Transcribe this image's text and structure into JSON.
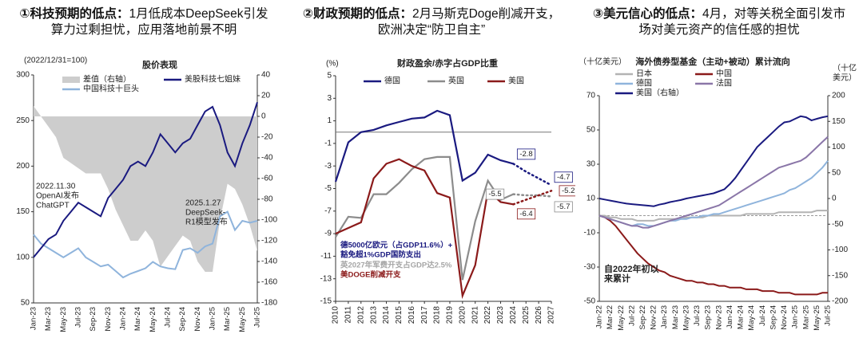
{
  "chart_data": [
    {
      "type": "line",
      "heading": {
        "lead": "①科技预期的低点：",
        "text": "1月低成本DeepSeek引发算力过剩担忧，应用落地前景不明"
      },
      "title": "股价表现",
      "note": "(2022/12/31=100)",
      "categories": [
        "Jan-23",
        null,
        "Mar-23",
        null,
        "May-23",
        null,
        "Jul-23",
        null,
        "Sep-23",
        null,
        "Nov-23",
        null,
        "Jan-24",
        null,
        "Mar-24",
        null,
        "May-24",
        null,
        "Jul-24",
        null,
        "Sep-24",
        null,
        "Nov-24",
        null,
        "Jan-25",
        null,
        "Mar-25",
        null,
        "May-25",
        null,
        "Jul-25"
      ],
      "series": [
        {
          "name": "差值（右轴）",
          "type": "area",
          "axis": "y2",
          "color": "#cdcdcd",
          "values": [
            10,
            0,
            -10,
            -20,
            -40,
            -45,
            -50,
            -55,
            -55,
            -55,
            -70,
            -90,
            -105,
            -120,
            -120,
            -110,
            -120,
            -145,
            -135,
            -125,
            -115,
            -120,
            -140,
            -150,
            -150,
            -100,
            -65,
            -70,
            -85,
            -105,
            -130
          ]
        },
        {
          "name": "中国科技十巨头",
          "type": "line",
          "color": "#8fb4dc",
          "values": [
            125,
            115,
            110,
            105,
            100,
            105,
            110,
            100,
            95,
            90,
            92,
            85,
            78,
            82,
            85,
            88,
            95,
            90,
            88,
            87,
            108,
            110,
            105,
            112,
            115,
            145,
            150,
            130,
            140,
            138,
            140
          ]
        },
        {
          "name": "美股科技七姐妹",
          "type": "line",
          "color": "#1a1a80",
          "values": [
            100,
            110,
            120,
            125,
            140,
            150,
            160,
            155,
            150,
            145,
            165,
            175,
            185,
            200,
            205,
            200,
            215,
            235,
            225,
            215,
            225,
            230,
            245,
            260,
            265,
            245,
            215,
            200,
            225,
            245,
            270
          ]
        }
      ],
      "ylim": [
        50,
        300
      ],
      "yticks": [
        50,
        100,
        150,
        200,
        250,
        300
      ],
      "y2lim": [
        -180,
        40
      ],
      "y2ticks": [
        -180,
        -160,
        -140,
        -120,
        -100,
        -80,
        -60,
        -40,
        -20,
        0,
        20,
        40
      ],
      "annotations": [
        [
          "2022.11.30",
          "OpenAI发布",
          "ChatGPT"
        ],
        [
          "2025.1.27",
          "DeepSeek-",
          "R1模型发布"
        ]
      ]
    },
    {
      "type": "line",
      "heading": {
        "lead": "②财政预期的低点：",
        "text": "2月马斯克Doge削减开支，欧洲决定“防卫自主”"
      },
      "title": "财政盈余/赤字占GDP比重",
      "ylabel": "(%)",
      "x": [
        2010,
        2011,
        2012,
        2013,
        2014,
        2015,
        2016,
        2017,
        2018,
        2019,
        2020,
        2021,
        2022,
        2023,
        2024,
        2025,
        2026,
        2027
      ],
      "xlim": [
        2010,
        2027
      ],
      "xticks": [
        2010,
        2011,
        2012,
        2013,
        2014,
        2015,
        2016,
        2017,
        2018,
        2019,
        2020,
        2021,
        2022,
        2023,
        2024,
        2025,
        2026,
        2027
      ],
      "projection_from": 2024,
      "series": [
        {
          "name": "德国",
          "color": "#1a1a80",
          "values": [
            -4.4,
            -0.9,
            0,
            0.2,
            0.6,
            0.9,
            1.2,
            1.3,
            1.9,
            1.5,
            -4.3,
            -3.6,
            -2.0,
            -2.5,
            -2.8,
            -3.5,
            -4.1,
            -4.7
          ]
        },
        {
          "name": "英国",
          "color": "#8c8c8c",
          "values": [
            -9.3,
            -7.5,
            -7.6,
            -5.5,
            -5.5,
            -4.5,
            -3.3,
            -2.4,
            -2.2,
            -2.2,
            -13.1,
            -7.9,
            -4.3,
            -6.0,
            -5.5,
            -5.6,
            -5.6,
            -5.7
          ]
        },
        {
          "name": "美国",
          "color": "#8b1a1a",
          "values": [
            -9.0,
            -8.5,
            -8.0,
            -4.1,
            -2.8,
            -2.4,
            -3.0,
            -3.4,
            -5.4,
            -5.8,
            -14.5,
            -11.8,
            -5.2,
            -6.2,
            -6.4,
            -6.0,
            -5.6,
            -5.2
          ]
        }
      ],
      "ylim": [
        -15,
        5
      ],
      "yticks": [
        5,
        3,
        1,
        -1,
        -3,
        -5,
        -7,
        -9,
        -11,
        -13,
        -15
      ],
      "annotations": [
        {
          "lines": [
            "德5000亿欧元（占GDP11.6%）+",
            "豁免超1%GDP国防支出"
          ],
          "color": "#1a1a80"
        },
        {
          "lines": [
            "英2027年军费开支占GDP达2.5%"
          ],
          "color": "#a6a6a6"
        },
        {
          "lines": [
            "美DOGE削减开支"
          ],
          "color": "#8b1a1a"
        }
      ]
    },
    {
      "type": "line",
      "heading": {
        "lead": "③美元信心的低点：",
        "text": "4月，对等关税全面引发市场对美元资产的信任感的担忧"
      },
      "title": "海外债券型基金（主动+被动）累计流向",
      "ylabel": "（十亿美元）",
      "y2label": [
        "（十亿",
        "美元）"
      ],
      "categories": [
        "Jan-22",
        null,
        "Mar-22",
        null,
        "May-22",
        null,
        "Jul-22",
        null,
        "Sep-22",
        null,
        "Nov-22",
        null,
        "Jan-23",
        null,
        "Mar-23",
        null,
        "May-23",
        null,
        "Jul-23",
        null,
        "Sep-23",
        null,
        "Nov-23",
        null,
        "Jan-24",
        null,
        "Mar-24",
        null,
        "May-24",
        null,
        "Jul-24",
        null,
        "Sep-24",
        null,
        "Nov-24",
        null,
        "Jan-25",
        null,
        "Mar-25",
        null,
        "May-25",
        null,
        "Jul-25"
      ],
      "series": [
        {
          "name": "日本",
          "color": "#b3b3b3",
          "values": [
            0,
            0,
            -1,
            -1,
            -2,
            -2,
            -2,
            -3,
            -3,
            -3,
            -3,
            -2,
            -2,
            -2,
            -2,
            -2,
            -1,
            -1,
            -1,
            -1,
            0,
            0,
            0,
            0,
            0,
            0,
            0,
            1,
            1,
            1,
            1,
            1,
            1,
            2,
            2,
            2,
            2,
            2,
            2,
            2,
            3,
            3,
            3
          ]
        },
        {
          "name": "中国",
          "color": "#8b1a1a",
          "values": [
            0,
            -1,
            -3,
            -6,
            -10,
            -14,
            -18,
            -22,
            -25,
            -28,
            -30,
            -32,
            -33,
            -35,
            -36,
            -37,
            -38,
            -38,
            -39,
            -39,
            -40,
            -40,
            -41,
            -41,
            -42,
            -42,
            -42,
            -43,
            -43,
            -43,
            -44,
            -44,
            -44,
            -45,
            -45,
            -45,
            -46,
            -46,
            -46,
            -46,
            -46,
            -45,
            -45
          ]
        },
        {
          "name": "德国",
          "color": "#8fb4dc",
          "values": [
            0,
            -1,
            -2,
            -3,
            -4,
            -5,
            -6,
            -5,
            -5,
            -6,
            -6,
            -5,
            -4,
            -3,
            -3,
            -2,
            -2,
            -1,
            -1,
            0,
            0,
            1,
            1,
            2,
            3,
            4,
            5,
            6,
            7,
            8,
            9,
            10,
            11,
            12,
            13,
            15,
            16,
            18,
            20,
            22,
            25,
            28,
            32
          ]
        },
        {
          "name": "法国",
          "color": "#8a76a8",
          "values": [
            0,
            -1,
            -2,
            -3,
            -4,
            -5,
            -6,
            -6,
            -7,
            -7,
            -6,
            -5,
            -4,
            -3,
            -2,
            -1,
            0,
            1,
            2,
            3,
            4,
            5,
            6,
            8,
            10,
            12,
            14,
            16,
            18,
            20,
            22,
            24,
            26,
            28,
            29,
            30,
            31,
            32,
            34,
            37,
            40,
            43,
            46
          ]
        },
        {
          "name": "美国（右轴）",
          "axis": "y2",
          "color": "#1a1a80",
          "values": [
            0,
            -2,
            -4,
            -6,
            -8,
            -10,
            -11,
            -12,
            -13,
            -14,
            -15,
            -12,
            -10,
            -7,
            -5,
            -3,
            0,
            2,
            4,
            6,
            8,
            10,
            14,
            18,
            28,
            40,
            55,
            70,
            85,
            100,
            110,
            120,
            130,
            140,
            148,
            150,
            155,
            160,
            158,
            152,
            155,
            158,
            160
          ]
        }
      ],
      "ylim": [
        -50,
        70
      ],
      "yticks": [
        70,
        50,
        30,
        10,
        -10,
        -30,
        -50
      ],
      "y2lim": [
        -200,
        200
      ],
      "y2ticks": [
        200,
        150,
        100,
        50,
        0,
        -50,
        -100,
        -150,
        -200
      ],
      "annotations": [
        [
          "自2022年初以",
          "来累计"
        ]
      ]
    }
  ]
}
